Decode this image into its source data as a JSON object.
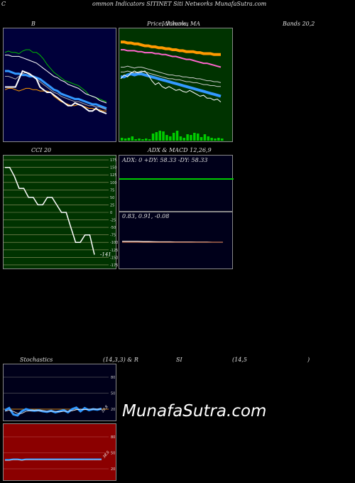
{
  "header": {
    "left": "C",
    "center": "ommon  Indicators SITINET Siti  Networks MunafaSutra.com"
  },
  "titles": {
    "b": "B",
    "price": "Price,  Volume,  MA",
    "price_overlay": "Ichimoku",
    "bands": "Bands 20,2",
    "cci": "CCI 20",
    "adx_macd": "ADX  & MACD 12,26,9",
    "stoch_a": "Stochastics",
    "stoch_b": "(14,3,3) & R",
    "stoch_c": "SI",
    "stoch_d": "(14,5",
    "stoch_e": ")"
  },
  "watermark": "MunafaSutra.com",
  "colors": {
    "bands_bg": "#00003a",
    "price_bg": "#003300",
    "cci_bg": "#003300",
    "adx_bg": "#00001a",
    "stoch_bg": "#00001a",
    "rsi_bg": "#8b0000",
    "green": "#00cc00",
    "orange": "#ff9900",
    "blue": "#3399ff",
    "white": "#ffffff"
  },
  "chart_data": [
    {
      "panel": "bollinger",
      "type": "line",
      "x": [
        1,
        2,
        3,
        4,
        5,
        6,
        7,
        8,
        9,
        10,
        11,
        12,
        13,
        14,
        15,
        16,
        17,
        18,
        19,
        20,
        21,
        22,
        23,
        24,
        25,
        26,
        27,
        28,
        29,
        30
      ],
      "series": [
        {
          "values": [
            62,
            63,
            62,
            62,
            61,
            63,
            64,
            64,
            62,
            62,
            60,
            57,
            53,
            50,
            47,
            45,
            43,
            41,
            40,
            39,
            38,
            37,
            35,
            33,
            30,
            29,
            28,
            27,
            26,
            25
          ]
        },
        {
          "values": [
            60,
            60,
            59,
            59,
            59,
            58,
            57,
            56,
            55,
            54,
            52,
            50,
            48,
            46,
            44,
            43,
            41,
            40,
            38,
            37,
            36,
            35,
            33,
            31,
            30,
            29,
            28,
            26,
            25,
            24
          ]
        },
        {
          "values": [
            48,
            48,
            47,
            46,
            46,
            45,
            45,
            44,
            44,
            43,
            42,
            40,
            38,
            36,
            34,
            33,
            31,
            30,
            29,
            28,
            27,
            27,
            26,
            25,
            24,
            23,
            23,
            22,
            21,
            20
          ]
        },
        {
          "values": [
            44,
            44,
            43,
            42,
            44,
            46,
            47,
            45,
            44,
            42,
            40,
            38,
            36,
            34,
            32,
            31,
            29,
            28,
            27,
            26,
            25,
            25,
            24,
            23,
            22,
            22,
            21,
            21,
            20,
            19
          ]
        },
        {
          "values": [
            34,
            35,
            35,
            34,
            33,
            34,
            35,
            35,
            34,
            34,
            33,
            33,
            33,
            32,
            29,
            27,
            25,
            24,
            23,
            22,
            22,
            23,
            22,
            21,
            20,
            20,
            19,
            19,
            18,
            18
          ]
        },
        {
          "values": [
            36,
            36,
            36,
            36,
            42,
            48,
            47,
            46,
            44,
            42,
            36,
            34,
            32,
            32,
            30,
            28,
            26,
            24,
            22,
            22,
            24,
            23,
            22,
            20,
            18,
            18,
            20,
            18,
            17,
            16
          ]
        }
      ],
      "ylim": [
        0,
        80
      ]
    },
    {
      "panel": "price_volume_ma",
      "type": "line",
      "x": [
        1,
        2,
        3,
        4,
        5,
        6,
        7,
        8,
        9,
        10,
        11,
        12,
        13,
        14,
        15,
        16,
        17,
        18,
        19,
        20,
        21,
        22,
        23,
        24,
        25,
        26,
        27,
        28,
        29,
        30
      ],
      "series": [
        {
          "values": [
            96,
            96,
            95,
            95,
            94,
            94,
            93,
            92,
            92,
            91,
            91,
            90,
            90,
            89,
            89,
            88,
            88,
            87,
            87,
            86,
            86,
            86,
            85,
            85,
            84,
            84,
            84,
            83,
            83,
            83
          ]
        },
        {
          "values": [
            88,
            88,
            87,
            87,
            87,
            86,
            86,
            85,
            85,
            85,
            84,
            84,
            83,
            83,
            82,
            81,
            81,
            80,
            79,
            78,
            78,
            77,
            76,
            75,
            74,
            74,
            73,
            72,
            71,
            70
          ]
        },
        {
          "values": [
            70,
            70,
            71,
            70,
            69,
            70,
            70,
            69,
            68,
            67,
            66,
            65,
            64,
            63,
            62,
            62,
            61,
            61,
            60,
            60,
            59,
            59,
            58,
            58,
            57,
            56,
            56,
            55,
            55,
            54
          ]
        },
        {
          "values": [
            65,
            65,
            66,
            65,
            64,
            65,
            66,
            65,
            64,
            63,
            62,
            61,
            60,
            59,
            58,
            58,
            57,
            57,
            56,
            55,
            55,
            54,
            54,
            53,
            52,
            52,
            51,
            51,
            50,
            50
          ]
        },
        {
          "values": [
            60,
            60,
            62,
            63,
            62,
            63,
            63,
            62,
            61,
            60,
            59,
            58,
            57,
            56,
            55,
            54,
            53,
            52,
            51,
            50,
            49,
            48,
            47,
            46,
            45,
            44,
            43,
            42,
            41,
            40
          ]
        },
        {
          "values": [
            58,
            62,
            60,
            64,
            66,
            64,
            65,
            66,
            62,
            56,
            52,
            54,
            50,
            48,
            50,
            48,
            46,
            47,
            45,
            44,
            46,
            44,
            42,
            40,
            41,
            38,
            38,
            36,
            37,
            34
          ]
        }
      ],
      "volume": [
        4,
        3,
        4,
        6,
        2,
        3,
        2,
        3,
        2,
        10,
        12,
        14,
        13,
        8,
        6,
        11,
        14,
        6,
        4,
        9,
        8,
        11,
        10,
        5,
        9,
        6,
        4,
        3,
        4,
        3
      ],
      "ylim": [
        0,
        110
      ]
    },
    {
      "panel": "cci",
      "type": "line",
      "yticks": [
        175,
        150,
        125,
        100,
        75,
        50,
        25,
        0,
        -25,
        -50,
        -75,
        -100,
        -125,
        -150,
        -175
      ],
      "values": [
        150,
        150,
        120,
        80,
        80,
        50,
        50,
        25,
        25,
        50,
        50,
        25,
        0,
        0,
        -50,
        -100,
        -100,
        -75,
        -75,
        -141
      ],
      "last_label": "-141",
      "ylim": [
        -180,
        180
      ]
    },
    {
      "panel": "adx",
      "type": "line",
      "label": "ADX: 0   +DY: 58.33  -DY: 58.33",
      "values": [
        0,
        0,
        0,
        0,
        0,
        0,
        0,
        0,
        0,
        0,
        0,
        0,
        0,
        0,
        0,
        0,
        0,
        0,
        0,
        0
      ]
    },
    {
      "panel": "macd",
      "type": "line",
      "label": "0.83,  0.91,  -0.08",
      "values": [
        0.9,
        0.9,
        0.9,
        0.9,
        0.88,
        0.88,
        0.87,
        0.86,
        0.86,
        0.86,
        0.85,
        0.85,
        0.85,
        0.85,
        0.84,
        0.84,
        0.84,
        0.83,
        0.83,
        0.83
      ]
    },
    {
      "panel": "stochastics",
      "type": "line",
      "yticks": [
        80,
        50,
        20
      ],
      "values": [
        18,
        22,
        10,
        8,
        16,
        20,
        18,
        17,
        18,
        16,
        15,
        17,
        14,
        16,
        18,
        14,
        20,
        23,
        16,
        22,
        18,
        20,
        19,
        21
      ],
      "signal": [
        16,
        18,
        16,
        12,
        12,
        16,
        17,
        18,
        17,
        17,
        16,
        16,
        16,
        15,
        16,
        16,
        17,
        19,
        20,
        19,
        20,
        20,
        20,
        20
      ],
      "last_label": "20.8",
      "ylim": [
        0,
        100
      ]
    },
    {
      "panel": "rsi",
      "type": "line",
      "yticks": [
        80,
        50,
        20
      ],
      "values": [
        37,
        37,
        38,
        38,
        37,
        38,
        38,
        38,
        38,
        38,
        38,
        38,
        38,
        38,
        38,
        38,
        38,
        38,
        38,
        38,
        38,
        38,
        38,
        38
      ],
      "last_label": "38.5",
      "ylim": [
        0,
        100
      ]
    }
  ]
}
